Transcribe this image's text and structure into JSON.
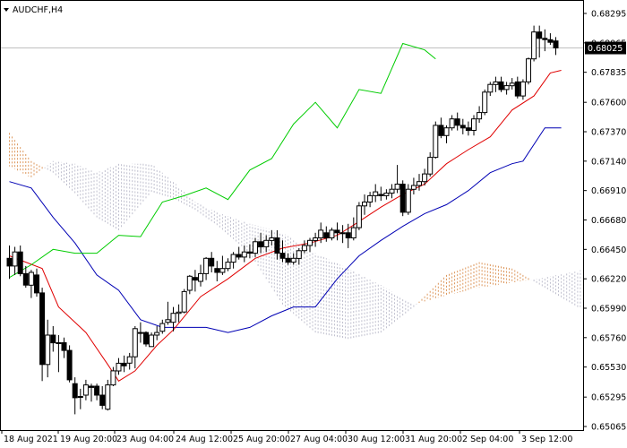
{
  "symbol": "AUDCHF,H4",
  "chart_data": {
    "type": "candlestick",
    "symbol": "AUDCHF,H4",
    "current_price": 0.68025,
    "ylim": [
      0.65065,
      0.68295
    ],
    "y_ticks": [
      "0.68295",
      "0.68065",
      "0.67835",
      "0.67600",
      "0.67370",
      "0.67140",
      "0.66910",
      "0.66680",
      "0.66450",
      "0.66220",
      "0.65990",
      "0.65760",
      "0.65530",
      "0.65295",
      "0.65065"
    ],
    "x_ticks": [
      "18 Aug 2021",
      "19 Aug 20:00",
      "23 Aug 04:00",
      "24 Aug 12:00",
      "25 Aug 20:00",
      "27 Aug 04:00",
      "30 Aug 12:00",
      "31 Aug 20:00",
      "2 Sep 04:00",
      "3 Sep 12:00"
    ],
    "grid": false,
    "ohlc_columns": [
      "open",
      "high",
      "low",
      "close"
    ],
    "candles": [
      [
        0.6638,
        0.6648,
        0.6622,
        0.6632
      ],
      [
        0.6632,
        0.6647,
        0.6625,
        0.6643
      ],
      [
        0.6643,
        0.6648,
        0.6624,
        0.6626
      ],
      [
        0.6626,
        0.6632,
        0.6615,
        0.6617
      ],
      [
        0.6617,
        0.6629,
        0.6607,
        0.6627
      ],
      [
        0.6625,
        0.663,
        0.6608,
        0.6611
      ],
      [
        0.6611,
        0.6615,
        0.6542,
        0.6555
      ],
      [
        0.6555,
        0.659,
        0.6545,
        0.6578
      ],
      [
        0.6578,
        0.6585,
        0.6565,
        0.6572
      ],
      [
        0.6572,
        0.6578,
        0.6549,
        0.6572
      ],
      [
        0.6572,
        0.6576,
        0.656,
        0.6566
      ],
      [
        0.6566,
        0.657,
        0.6541,
        0.6543
      ],
      [
        0.654,
        0.6545,
        0.6516,
        0.6529
      ],
      [
        0.653,
        0.6536,
        0.652,
        0.653
      ],
      [
        0.6531,
        0.6543,
        0.6527,
        0.6539
      ],
      [
        0.6538,
        0.654,
        0.6526,
        0.6537
      ],
      [
        0.6538,
        0.654,
        0.6527,
        0.6531
      ],
      [
        0.6531,
        0.6538,
        0.652,
        0.6523
      ],
      [
        0.652,
        0.6543,
        0.6519,
        0.6539
      ],
      [
        0.6539,
        0.6553,
        0.6538,
        0.655
      ],
      [
        0.655,
        0.656,
        0.6547,
        0.6556
      ],
      [
        0.6556,
        0.6562,
        0.6549,
        0.6554
      ],
      [
        0.6556,
        0.6564,
        0.6551,
        0.6561
      ],
      [
        0.6561,
        0.6585,
        0.6552,
        0.6583
      ],
      [
        0.658,
        0.6588,
        0.6572,
        0.658
      ],
      [
        0.658,
        0.6581,
        0.6569,
        0.6571
      ],
      [
        0.6569,
        0.658,
        0.657,
        0.6578
      ],
      [
        0.6578,
        0.6585,
        0.6574,
        0.658
      ],
      [
        0.6581,
        0.659,
        0.6579,
        0.6587
      ],
      [
        0.6588,
        0.6604,
        0.6586,
        0.659
      ],
      [
        0.6588,
        0.66,
        0.6581,
        0.6595
      ],
      [
        0.6595,
        0.6602,
        0.6588,
        0.6596
      ],
      [
        0.6596,
        0.6614,
        0.6595,
        0.6612
      ],
      [
        0.6613,
        0.6625,
        0.661,
        0.6624
      ],
      [
        0.6623,
        0.6629,
        0.6612,
        0.6621
      ],
      [
        0.662,
        0.6633,
        0.6616,
        0.6626
      ],
      [
        0.6626,
        0.6639,
        0.6621,
        0.6638
      ],
      [
        0.6638,
        0.6643,
        0.6627,
        0.6632
      ],
      [
        0.663,
        0.6636,
        0.662,
        0.6627
      ],
      [
        0.6627,
        0.664,
        0.6625,
        0.663
      ],
      [
        0.663,
        0.6638,
        0.6628,
        0.6635
      ],
      [
        0.6635,
        0.6643,
        0.663,
        0.6641
      ],
      [
        0.6641,
        0.6647,
        0.6637,
        0.6639
      ],
      [
        0.6639,
        0.6648,
        0.6635,
        0.6643
      ],
      [
        0.6643,
        0.6649,
        0.6638,
        0.6642
      ],
      [
        0.6642,
        0.6654,
        0.6639,
        0.6651
      ],
      [
        0.6651,
        0.6658,
        0.6642,
        0.6647
      ],
      [
        0.6647,
        0.6656,
        0.6643,
        0.6652
      ],
      [
        0.6652,
        0.666,
        0.6648,
        0.6654
      ],
      [
        0.6654,
        0.666,
        0.6637,
        0.6642
      ],
      [
        0.6642,
        0.6652,
        0.6635,
        0.6638
      ],
      [
        0.6638,
        0.6642,
        0.6633,
        0.6635
      ],
      [
        0.6635,
        0.6642,
        0.6633,
        0.6638
      ],
      [
        0.6638,
        0.6646,
        0.6633,
        0.6644
      ],
      [
        0.6644,
        0.6652,
        0.6642,
        0.6648
      ],
      [
        0.6648,
        0.6654,
        0.6643,
        0.6652
      ],
      [
        0.6652,
        0.6658,
        0.6647,
        0.6654
      ],
      [
        0.6654,
        0.6666,
        0.665,
        0.666
      ],
      [
        0.6658,
        0.6663,
        0.6651,
        0.6654
      ],
      [
        0.6654,
        0.6662,
        0.6652,
        0.666
      ],
      [
        0.666,
        0.6666,
        0.6652,
        0.6658
      ],
      [
        0.6658,
        0.6664,
        0.665,
        0.6658
      ],
      [
        0.6658,
        0.6665,
        0.6646,
        0.6654
      ],
      [
        0.6654,
        0.667,
        0.6652,
        0.6662
      ],
      [
        0.6662,
        0.6682,
        0.666,
        0.6679
      ],
      [
        0.6679,
        0.6688,
        0.6672,
        0.6682
      ],
      [
        0.6682,
        0.669,
        0.6678,
        0.6687
      ],
      [
        0.6687,
        0.6696,
        0.6682,
        0.669
      ],
      [
        0.6688,
        0.6694,
        0.6683,
        0.6687
      ],
      [
        0.6687,
        0.6692,
        0.6684,
        0.6689
      ],
      [
        0.6689,
        0.6696,
        0.6685,
        0.6692
      ],
      [
        0.6692,
        0.6711,
        0.6689,
        0.6696
      ],
      [
        0.6696,
        0.6699,
        0.6671,
        0.6674
      ],
      [
        0.6674,
        0.6696,
        0.6672,
        0.6692
      ],
      [
        0.6692,
        0.6701,
        0.6688,
        0.6695
      ],
      [
        0.6695,
        0.6704,
        0.6691,
        0.6698
      ],
      [
        0.6698,
        0.6708,
        0.6695,
        0.6704
      ],
      [
        0.6704,
        0.6721,
        0.6702,
        0.6717
      ],
      [
        0.6717,
        0.6745,
        0.6716,
        0.6742
      ],
      [
        0.6742,
        0.6748,
        0.6732,
        0.6734
      ],
      [
        0.6734,
        0.6742,
        0.6728,
        0.674
      ],
      [
        0.674,
        0.675,
        0.6738,
        0.6747
      ],
      [
        0.6747,
        0.6752,
        0.6738,
        0.6742
      ],
      [
        0.6742,
        0.6747,
        0.6735,
        0.674
      ],
      [
        0.674,
        0.6745,
        0.6734,
        0.6738
      ],
      [
        0.6738,
        0.675,
        0.6734,
        0.6747
      ],
      [
        0.6747,
        0.6757,
        0.6744,
        0.6752
      ],
      [
        0.6752,
        0.677,
        0.675,
        0.6768
      ],
      [
        0.6768,
        0.6776,
        0.6765,
        0.6774
      ],
      [
        0.6774,
        0.678,
        0.6768,
        0.6776
      ],
      [
        0.6776,
        0.678,
        0.6768,
        0.677
      ],
      [
        0.677,
        0.6776,
        0.6766,
        0.6773
      ],
      [
        0.6773,
        0.6779,
        0.677,
        0.6775
      ],
      [
        0.6776,
        0.678,
        0.6763,
        0.6765
      ],
      [
        0.6765,
        0.6778,
        0.6762,
        0.6776
      ],
      [
        0.6776,
        0.6795,
        0.6774,
        0.6794
      ],
      [
        0.6794,
        0.682,
        0.6792,
        0.6815
      ],
      [
        0.6815,
        0.682,
        0.6795,
        0.681
      ],
      [
        0.681,
        0.6817,
        0.68,
        0.6809
      ],
      [
        0.6809,
        0.6814,
        0.6805,
        0.6807
      ],
      [
        0.6808,
        0.6811,
        0.6797,
        0.68025
      ]
    ],
    "tenkan": [
      [
        0,
        0.664
      ],
      [
        3,
        0.6635
      ],
      [
        6,
        0.663
      ],
      [
        9,
        0.66
      ],
      [
        14,
        0.658
      ],
      [
        18,
        0.6555
      ],
      [
        20,
        0.6542
      ],
      [
        23,
        0.655
      ],
      [
        27,
        0.657
      ],
      [
        30,
        0.6582
      ],
      [
        35,
        0.6608
      ],
      [
        40,
        0.6622
      ],
      [
        45,
        0.6638
      ],
      [
        50,
        0.6646
      ],
      [
        55,
        0.665
      ],
      [
        60,
        0.6656
      ],
      [
        63,
        0.6664
      ],
      [
        68,
        0.6678
      ],
      [
        72,
        0.6688
      ],
      [
        76,
        0.6696
      ],
      [
        80,
        0.6712
      ],
      [
        84,
        0.6723
      ],
      [
        88,
        0.6733
      ],
      [
        92,
        0.6754
      ],
      [
        96,
        0.6765
      ],
      [
        99,
        0.6783
      ],
      [
        101,
        0.6785
      ]
    ],
    "kijun": [
      [
        0,
        0.6698
      ],
      [
        4,
        0.6693
      ],
      [
        8,
        0.667
      ],
      [
        12,
        0.665
      ],
      [
        16,
        0.6625
      ],
      [
        20,
        0.6613
      ],
      [
        24,
        0.659
      ],
      [
        28,
        0.6584
      ],
      [
        32,
        0.6584
      ],
      [
        36,
        0.6584
      ],
      [
        40,
        0.658
      ],
      [
        44,
        0.6584
      ],
      [
        48,
        0.6593
      ],
      [
        52,
        0.66
      ],
      [
        56,
        0.66
      ],
      [
        60,
        0.6622
      ],
      [
        64,
        0.664
      ],
      [
        68,
        0.6652
      ],
      [
        72,
        0.6663
      ],
      [
        76,
        0.6673
      ],
      [
        80,
        0.668
      ],
      [
        84,
        0.6691
      ],
      [
        88,
        0.6705
      ],
      [
        92,
        0.6712
      ],
      [
        94,
        0.6714
      ],
      [
        98,
        0.674
      ],
      [
        101,
        0.674
      ]
    ],
    "chikou": [
      [
        0,
        0.6623
      ],
      [
        4,
        0.6633
      ],
      [
        8,
        0.6645
      ],
      [
        12,
        0.6642
      ],
      [
        16,
        0.6642
      ],
      [
        20,
        0.6656
      ],
      [
        24,
        0.6655
      ],
      [
        28,
        0.6682
      ],
      [
        32,
        0.6687
      ],
      [
        36,
        0.6693
      ],
      [
        40,
        0.6684
      ],
      [
        44,
        0.6707
      ],
      [
        48,
        0.6716
      ],
      [
        52,
        0.6743
      ],
      [
        56,
        0.676
      ],
      [
        60,
        0.674
      ],
      [
        64,
        0.677
      ],
      [
        68,
        0.6767
      ],
      [
        72,
        0.6806
      ],
      [
        76,
        0.6801
      ],
      [
        78,
        0.6794
      ]
    ],
    "cloud_shift": 26,
    "span_a": [
      [
        0,
        0.6736
      ],
      [
        4,
        0.6714
      ],
      [
        8,
        0.6705
      ],
      [
        12,
        0.6689
      ],
      [
        16,
        0.667
      ],
      [
        20,
        0.666
      ],
      [
        26,
        0.669
      ],
      [
        30,
        0.6685
      ],
      [
        34,
        0.6676
      ],
      [
        38,
        0.6664
      ],
      [
        44,
        0.6642
      ],
      [
        50,
        0.6602
      ],
      [
        56,
        0.658
      ],
      [
        62,
        0.6575
      ],
      [
        68,
        0.658
      ],
      [
        74,
        0.66
      ],
      [
        80,
        0.6625
      ],
      [
        86,
        0.6635
      ],
      [
        92,
        0.663
      ],
      [
        98,
        0.6615
      ],
      [
        104,
        0.66
      ],
      [
        110,
        0.6598
      ],
      [
        116,
        0.6602
      ],
      [
        122,
        0.661
      ],
      [
        126,
        0.6605
      ],
      [
        130,
        0.6605
      ]
    ],
    "span_b": [
      [
        0,
        0.671
      ],
      [
        4,
        0.6701
      ],
      [
        8,
        0.6714
      ],
      [
        12,
        0.6712
      ],
      [
        16,
        0.6705
      ],
      [
        20,
        0.6712
      ],
      [
        26,
        0.6712
      ],
      [
        30,
        0.6698
      ],
      [
        34,
        0.6682
      ],
      [
        38,
        0.6674
      ],
      [
        44,
        0.6665
      ],
      [
        50,
        0.6658
      ],
      [
        56,
        0.6642
      ],
      [
        62,
        0.663
      ],
      [
        68,
        0.6617
      ],
      [
        74,
        0.6602
      ],
      [
        80,
        0.6609
      ],
      [
        86,
        0.6615
      ],
      [
        92,
        0.6619
      ],
      [
        98,
        0.6623
      ],
      [
        104,
        0.6628
      ],
      [
        110,
        0.6636
      ],
      [
        116,
        0.6648
      ],
      [
        122,
        0.666
      ],
      [
        126,
        0.6665
      ],
      [
        130,
        0.667
      ]
    ],
    "colors": {
      "bullish_body": "#ffffff",
      "bearish_body": "#000000",
      "candle_outline": "#000000",
      "tenkan": "#e00000",
      "kijun": "#0000b4",
      "chikou": "#00cc00",
      "cloud_bull": "#d98c4a",
      "cloud_bear": "#b8b8c8",
      "price_line": "#c0c0c0",
      "frame": "#000000"
    }
  }
}
